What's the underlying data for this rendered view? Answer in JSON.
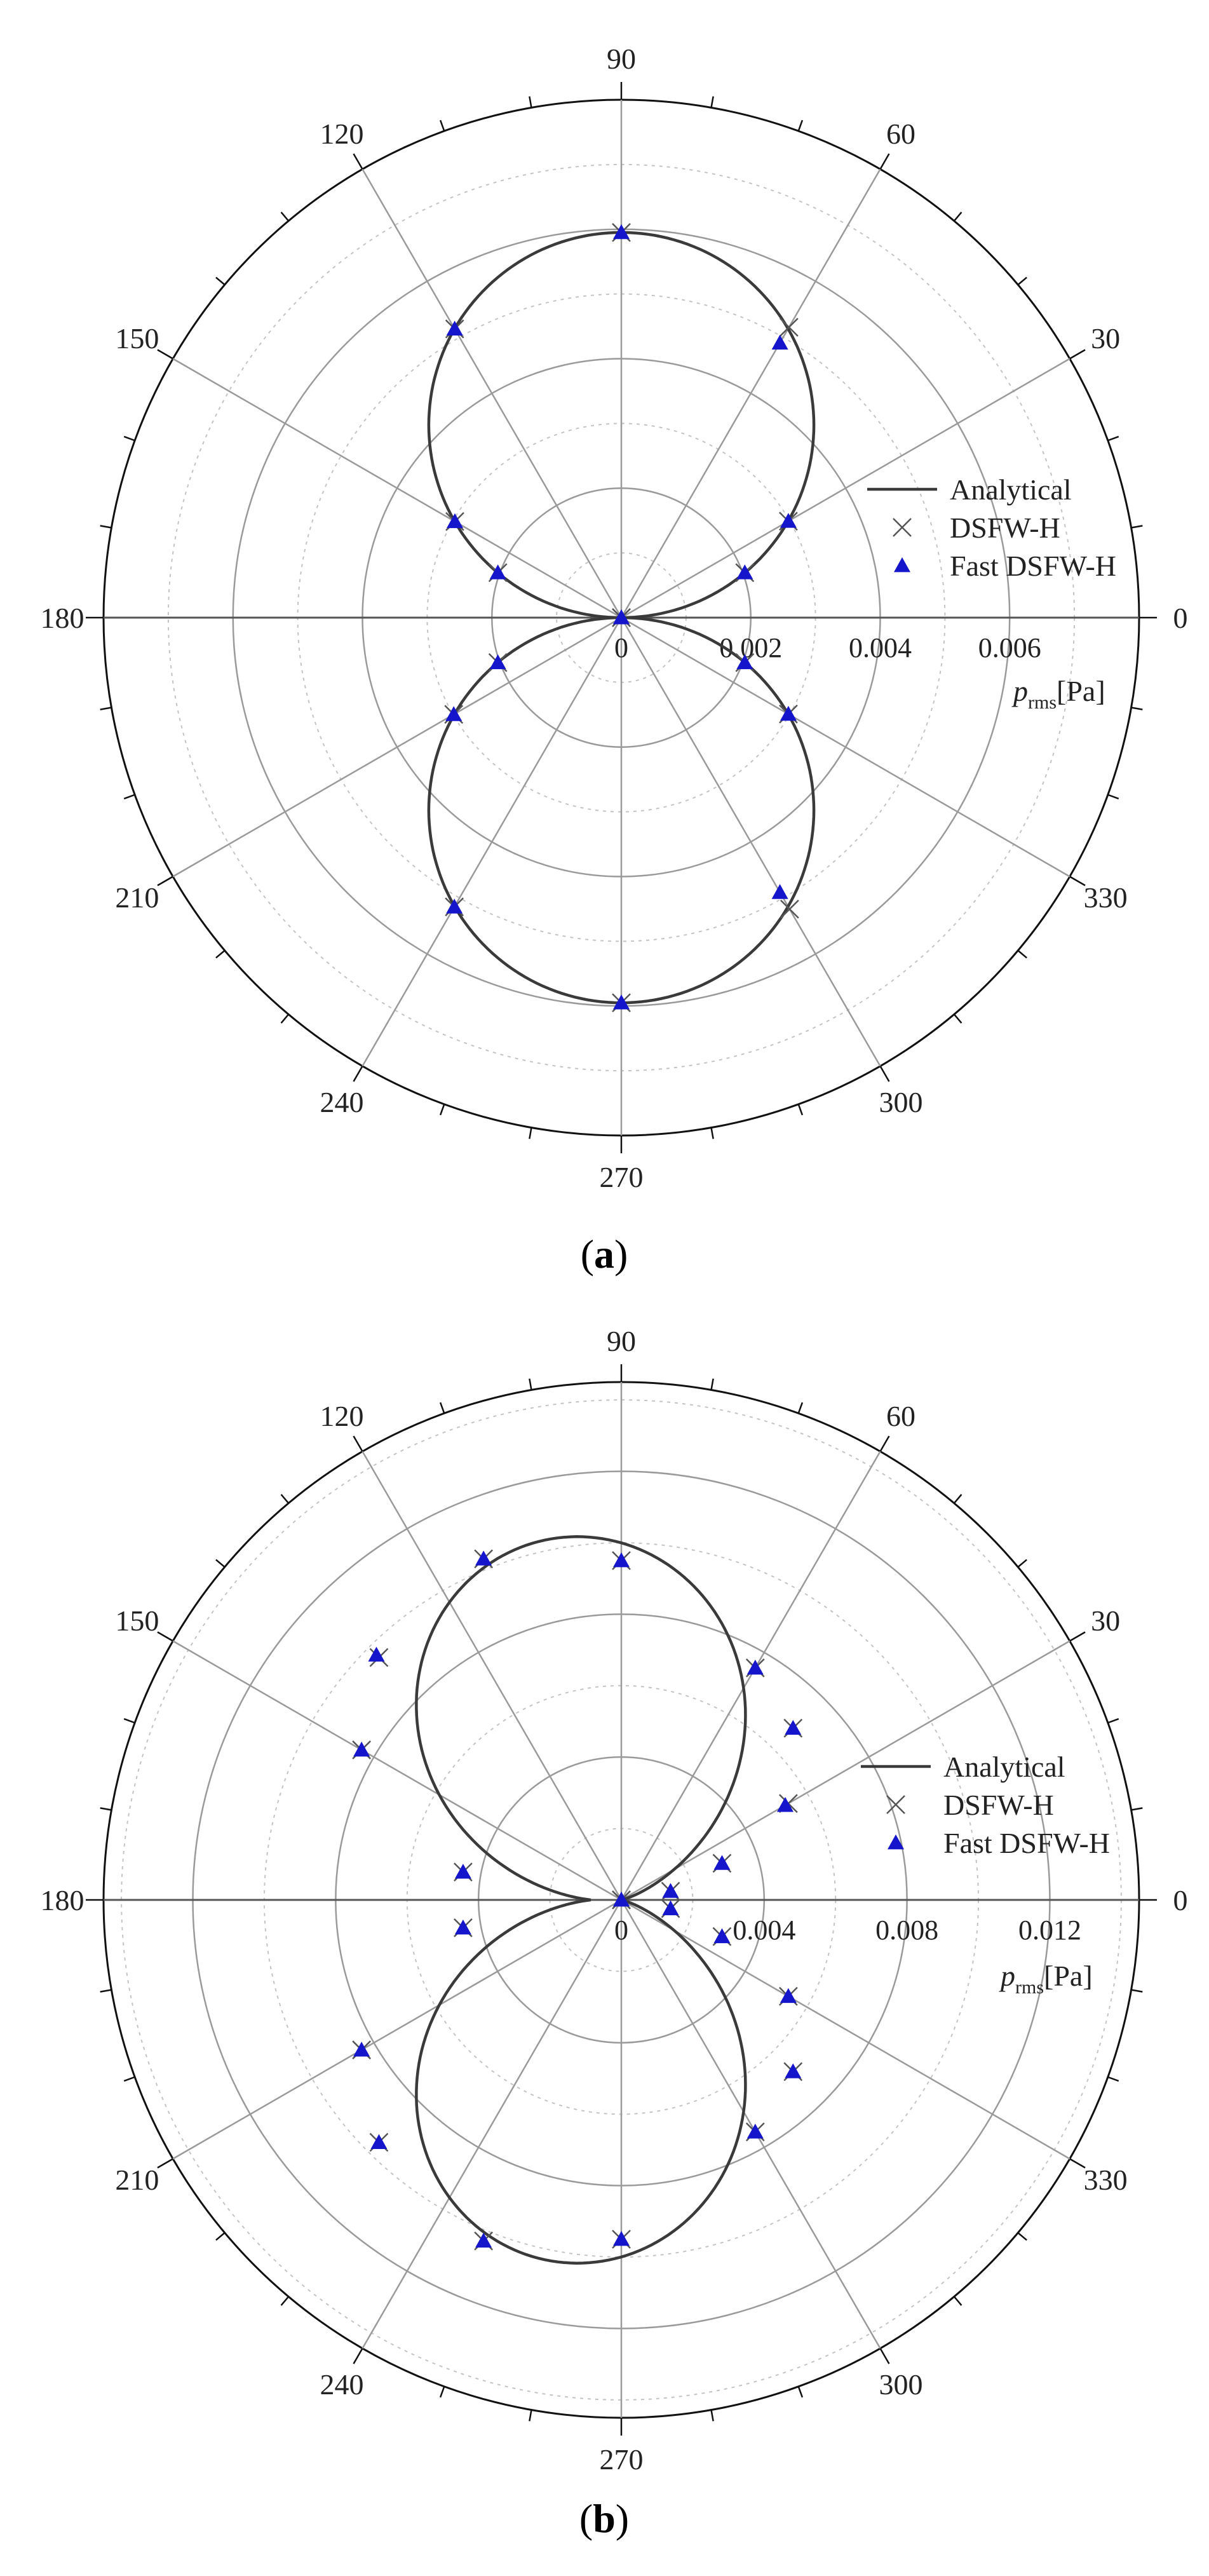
{
  "chart_data": [
    {
      "type": "polar",
      "panel_label": "a",
      "angle_ticks": [
        0,
        30,
        60,
        90,
        120,
        150,
        180,
        210,
        240,
        270,
        300,
        330
      ],
      "radial_ticks": [
        0,
        0.002,
        0.004,
        0.006
      ],
      "radial_tick_labels": [
        "0",
        "0.002",
        "0.004",
        "0.006"
      ],
      "rlim": [
        0,
        0.008
      ],
      "axis_title": {
        "main": "p",
        "sub": "rms",
        "unit": "[Pa]"
      },
      "legend": {
        "placement": "right",
        "entries": [
          "Analytical",
          "DSFW-H",
          "Fast DSFW-H"
        ]
      },
      "series": [
        {
          "name": "Analytical",
          "kind": "line",
          "model": "dipole",
          "amplitude": 0.00595,
          "color": "#3a3a3a"
        },
        {
          "name": "DSFW-H",
          "kind": "marker-x",
          "color": "#555555",
          "theta": [
            0,
            30,
            60,
            90,
            120,
            150,
            180,
            210,
            240,
            270,
            300,
            330,
            20,
            160,
            200,
            340
          ],
          "r": [
            0.0,
            0.00298,
            0.00518,
            0.00595,
            0.00515,
            0.00297,
            0.0,
            0.00299,
            0.00516,
            0.00595,
            0.0052,
            0.00298,
            0.00203,
            0.00203,
            0.00203,
            0.00203
          ]
        },
        {
          "name": "Fast DSFW-H",
          "kind": "marker-triangle",
          "color": "#1515cc",
          "theta": [
            0,
            30,
            60,
            90,
            120,
            150,
            180,
            210,
            240,
            270,
            300,
            330,
            20,
            160,
            200,
            340
          ],
          "r": [
            0.0,
            0.00298,
            0.0049,
            0.00595,
            0.00515,
            0.00297,
            0.0,
            0.00299,
            0.00516,
            0.00595,
            0.0049,
            0.00298,
            0.00203,
            0.00203,
            0.00203,
            0.00203
          ]
        }
      ]
    },
    {
      "type": "polar",
      "panel_label": "b",
      "angle_ticks": [
        0,
        30,
        60,
        90,
        120,
        150,
        180,
        210,
        240,
        270,
        300,
        330
      ],
      "radial_ticks": [
        0,
        0.004,
        0.008,
        0.012
      ],
      "radial_tick_labels": [
        "0",
        "0.004",
        "0.008",
        "0.012"
      ],
      "rlim": [
        0,
        0.0145
      ],
      "axis_title": {
        "main": "p",
        "sub": "rms",
        "unit": "[Pa]"
      },
      "legend": {
        "placement": "right",
        "entries": [
          "Analytical",
          "DSFW-H",
          "Fast DSFW-H"
        ]
      },
      "series": [
        {
          "name": "Analytical",
          "kind": "line",
          "model": "tilted-lobes",
          "lobes": [
            {
              "center": 102,
              "width_deg": 52,
              "peak": 0.0103
            },
            {
              "center": 258,
              "width_deg": 52,
              "peak": 0.0103
            }
          ],
          "color": "#3a3a3a"
        },
        {
          "name": "DSFW-H",
          "kind": "marker-x",
          "color": "#555555",
          "theta": [
            0,
            10,
            20,
            30,
            45,
            60,
            90,
            112,
            135,
            150,
            170,
            180,
            190,
            210,
            225,
            248,
            270,
            300,
            315,
            330,
            340,
            350
          ],
          "r": [
            0.0,
            0.0014,
            0.003,
            0.0054,
            0.0068,
            0.0075,
            0.0095,
            0.0103,
            0.0096,
            0.0084,
            0.0045,
            0.0,
            0.0045,
            0.0084,
            0.0096,
            0.0103,
            0.0095,
            0.0075,
            0.0068,
            0.0054,
            0.003,
            0.0014
          ]
        },
        {
          "name": "Fast DSFW-H",
          "kind": "marker-triangle",
          "color": "#1515cc",
          "theta": [
            0,
            10,
            20,
            30,
            45,
            60,
            90,
            112,
            135,
            150,
            170,
            180,
            190,
            210,
            225,
            248,
            270,
            300,
            315,
            330,
            340,
            350
          ],
          "r": [
            0.0,
            0.0014,
            0.003,
            0.0053,
            0.0068,
            0.0075,
            0.0095,
            0.0103,
            0.0097,
            0.0084,
            0.0045,
            0.0,
            0.0045,
            0.0084,
            0.0096,
            0.0103,
            0.0095,
            0.0075,
            0.0068,
            0.0054,
            0.003,
            0.0014
          ]
        }
      ]
    }
  ]
}
